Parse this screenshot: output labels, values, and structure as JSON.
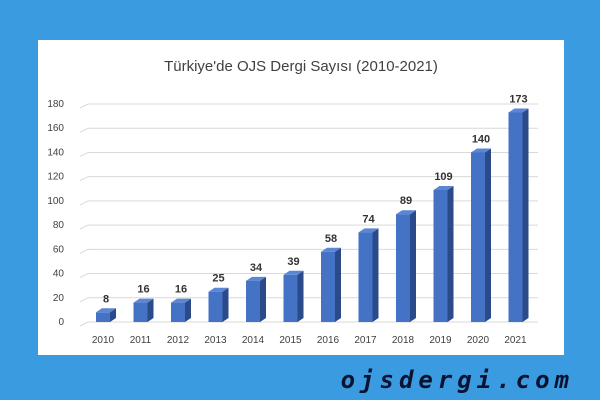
{
  "chart_data": {
    "type": "bar",
    "title": "Türkiye'de OJS Dergi Sayısı (2010-2021)",
    "categories": [
      "2010",
      "2011",
      "2012",
      "2013",
      "2014",
      "2015",
      "2016",
      "2017",
      "2018",
      "2019",
      "2020",
      "2021"
    ],
    "values": [
      8,
      16,
      16,
      25,
      34,
      39,
      58,
      74,
      89,
      109,
      140,
      173
    ],
    "ylim": [
      0,
      180
    ],
    "yticks": [
      0,
      20,
      40,
      60,
      80,
      100,
      120,
      140,
      160,
      180
    ],
    "grid": true,
    "data_labels": true,
    "legend": "none",
    "bar_color": "#4472c4",
    "bar_side_color": "#2a4a8a",
    "bar_top_color": "#5b86d6"
  },
  "watermark": "ojsdergi.com"
}
